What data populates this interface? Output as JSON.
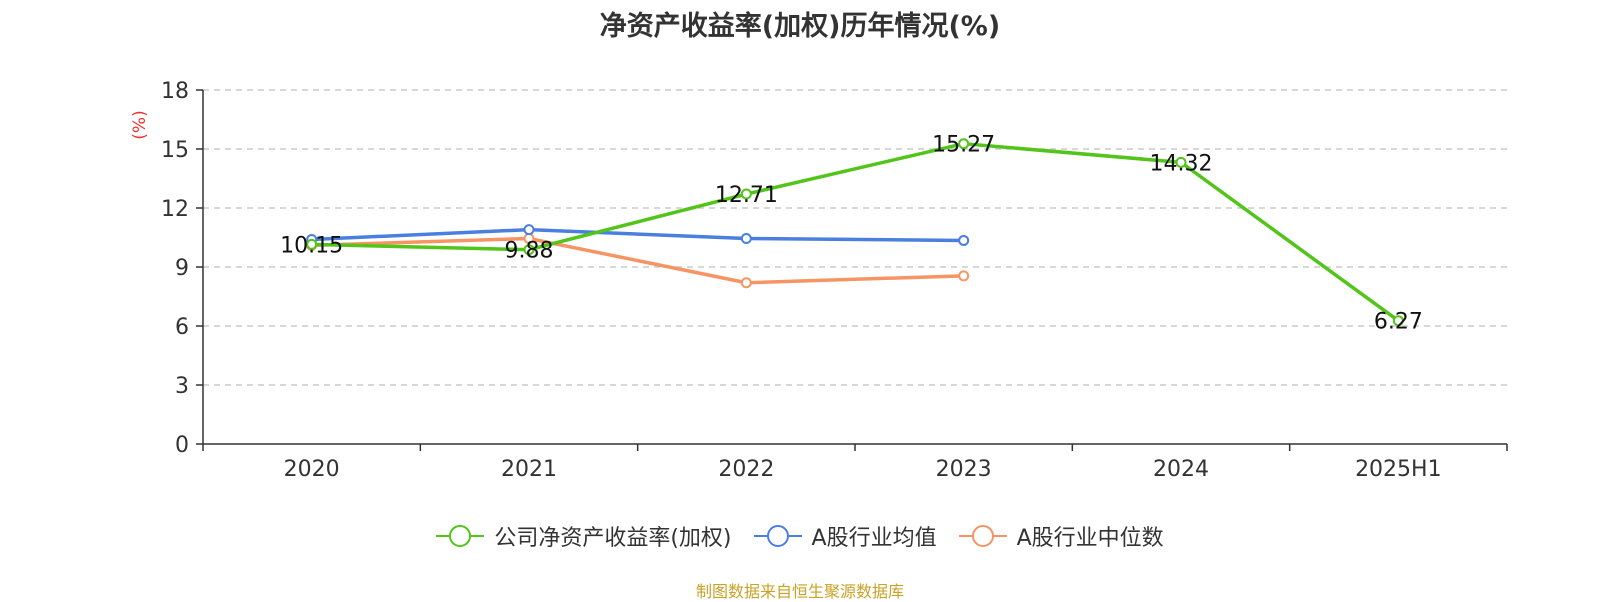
{
  "chart_data": {
    "type": "line",
    "title": "净资产收益率(加权)历年情况(%)",
    "ylabel": "(%)",
    "xlabel": "",
    "categories": [
      "2020",
      "2021",
      "2022",
      "2023",
      "2024",
      "2025H1"
    ],
    "ylim": [
      0,
      18
    ],
    "yticks": [
      0,
      3,
      6,
      9,
      12,
      15,
      18
    ],
    "grid": "horizontal-dashed",
    "legend_position": "bottom-center",
    "series": [
      {
        "name": "公司净资产收益率(加权)",
        "color": "#52c41a",
        "values": [
          10.15,
          9.88,
          12.71,
          15.27,
          14.32,
          6.27
        ],
        "labels": [
          "10.15",
          "9.88",
          "12.71",
          "15.27",
          "14.32",
          "6.27"
        ]
      },
      {
        "name": "A股行业均值",
        "color": "#4a7fe0",
        "values": [
          10.4,
          10.9,
          10.45,
          10.35,
          null,
          null
        ]
      },
      {
        "name": "A股行业中位数",
        "color": "#f79463",
        "values": [
          10.1,
          10.45,
          8.2,
          8.55,
          null,
          null
        ]
      }
    ]
  },
  "source": "制图数据来自恒生聚源数据库"
}
